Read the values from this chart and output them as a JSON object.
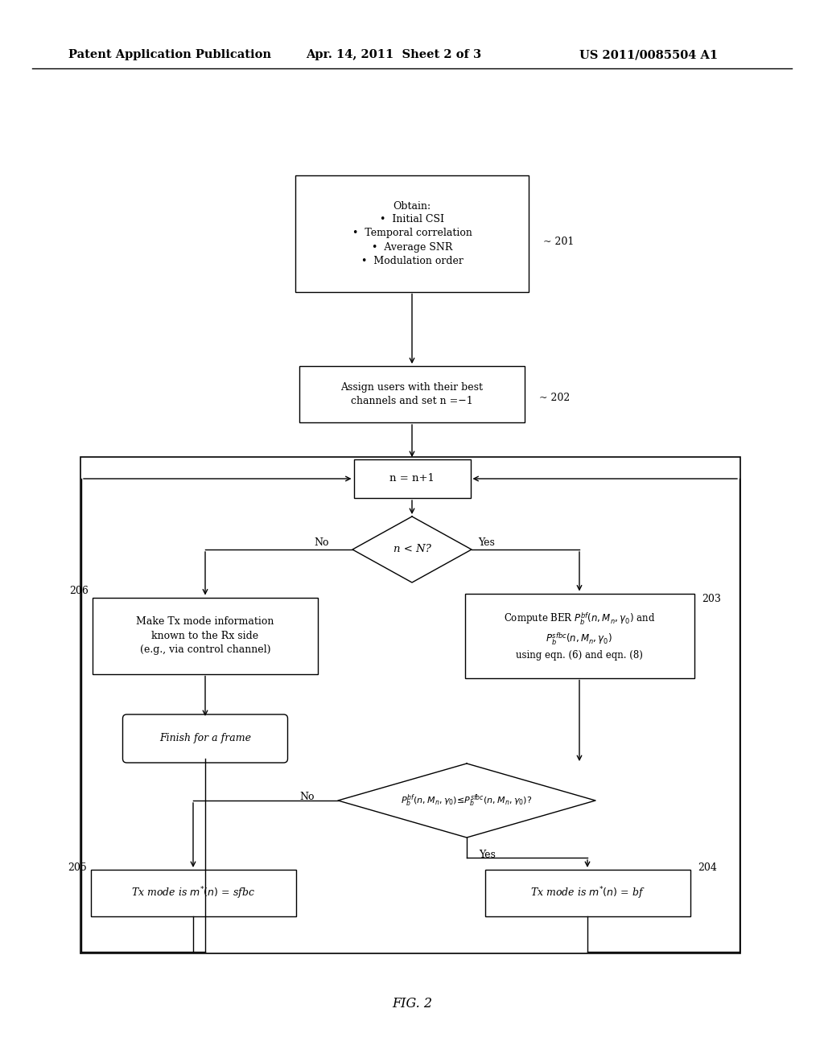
{
  "bg_color": "#ffffff",
  "header_left": "Patent Application Publication",
  "header_mid": "Apr. 14, 2011  Sheet 2 of 3",
  "header_right": "US 2011/0085504 A1",
  "fig_label": "FIG. 2"
}
